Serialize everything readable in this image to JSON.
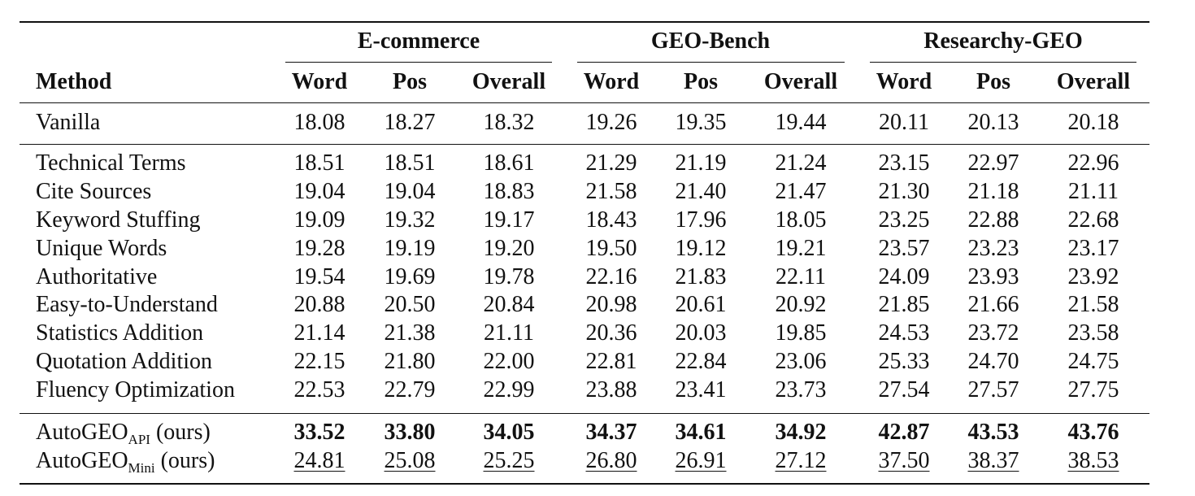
{
  "table": {
    "groups": [
      "E-commerce",
      "GEO-Bench",
      "Researchy-GEO"
    ],
    "method_header": "Method",
    "columns": [
      "Word",
      "Pos",
      "Overall",
      "Word",
      "Pos",
      "Overall",
      "Word",
      "Pos",
      "Overall"
    ],
    "baseline": {
      "method": "Vanilla",
      "values": [
        "18.08",
        "18.27",
        "18.32",
        "19.26",
        "19.35",
        "19.44",
        "20.11",
        "20.13",
        "20.18"
      ]
    },
    "rows": [
      {
        "method": "Technical Terms",
        "values": [
          "18.51",
          "18.51",
          "18.61",
          "21.29",
          "21.19",
          "21.24",
          "23.15",
          "22.97",
          "22.96"
        ]
      },
      {
        "method": "Cite Sources",
        "values": [
          "19.04",
          "19.04",
          "18.83",
          "21.58",
          "21.40",
          "21.47",
          "21.30",
          "21.18",
          "21.11"
        ]
      },
      {
        "method": "Keyword Stuffing",
        "values": [
          "19.09",
          "19.32",
          "19.17",
          "18.43",
          "17.96",
          "18.05",
          "23.25",
          "22.88",
          "22.68"
        ]
      },
      {
        "method": "Unique Words",
        "values": [
          "19.28",
          "19.19",
          "19.20",
          "19.50",
          "19.12",
          "19.21",
          "23.57",
          "23.23",
          "23.17"
        ]
      },
      {
        "method": "Authoritative",
        "values": [
          "19.54",
          "19.69",
          "19.78",
          "22.16",
          "21.83",
          "22.11",
          "24.09",
          "23.93",
          "23.92"
        ]
      },
      {
        "method": "Easy-to-Understand",
        "values": [
          "20.88",
          "20.50",
          "20.84",
          "20.98",
          "20.61",
          "20.92",
          "21.85",
          "21.66",
          "21.58"
        ]
      },
      {
        "method": "Statistics Addition",
        "values": [
          "21.14",
          "21.38",
          "21.11",
          "20.36",
          "20.03",
          "19.85",
          "24.53",
          "23.72",
          "23.58"
        ]
      },
      {
        "method": "Quotation Addition",
        "values": [
          "22.15",
          "21.80",
          "22.00",
          "22.81",
          "22.84",
          "23.06",
          "25.33",
          "24.70",
          "24.75"
        ]
      },
      {
        "method": "Fluency Optimization",
        "values": [
          "22.53",
          "22.79",
          "22.99",
          "23.88",
          "23.41",
          "23.73",
          "27.54",
          "27.57",
          "27.75"
        ]
      }
    ],
    "ours": [
      {
        "method_base": "AutoGEO",
        "method_sub": "API",
        "method_suffix": " (ours)",
        "style": "bold",
        "values": [
          "33.52",
          "33.80",
          "34.05",
          "34.37",
          "34.61",
          "34.92",
          "42.87",
          "43.53",
          "43.76"
        ]
      },
      {
        "method_base": "AutoGEO",
        "method_sub": "Mini",
        "method_suffix": " (ours)",
        "style": "underline",
        "values": [
          "24.81",
          "25.08",
          "25.25",
          "26.80",
          "26.91",
          "27.12",
          "37.50",
          "38.37",
          "38.53"
        ]
      }
    ]
  }
}
